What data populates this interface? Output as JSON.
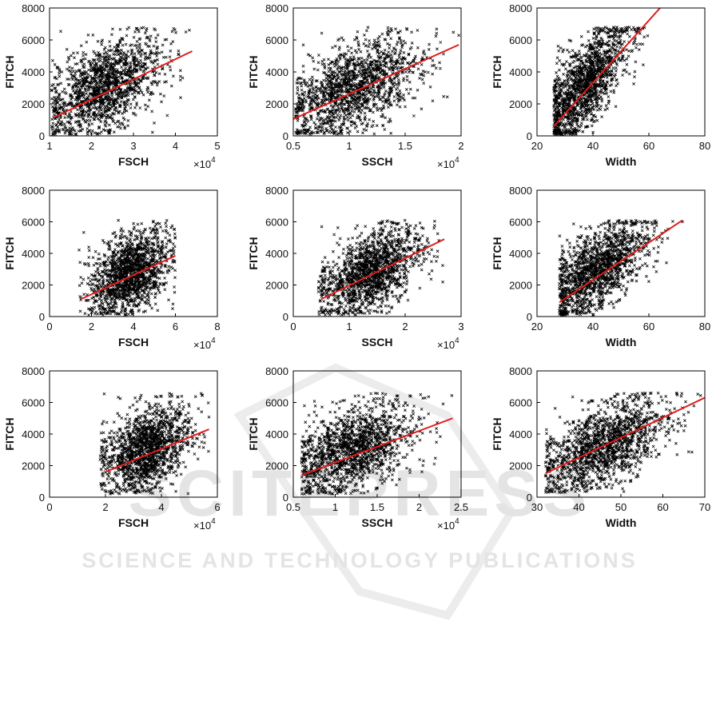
{
  "watermark": {
    "brand": "SCITEPRESS",
    "tagline": "SCIENCE AND TECHNOLOGY PUBLICATIONS"
  },
  "colors": {
    "points": "#000000",
    "fit_line": "#e11b1b",
    "axes": "#000000",
    "watermark": "#e4e4e4"
  },
  "chart_data": [
    {
      "type": "scatter",
      "title": "",
      "xlabel": "FSCH",
      "ylabel": "FITCH",
      "xlim": [
        1,
        5
      ],
      "ylim": [
        0,
        8000
      ],
      "xticks": [
        "1",
        "2",
        "3",
        "4",
        "5"
      ],
      "yticks": [
        "0",
        "2000",
        "4000",
        "6000",
        "8000"
      ],
      "x_multiplier": "×10^4",
      "point_cloud": {
        "center": [
          2.3,
          3000
        ],
        "x_range": [
          1.05,
          4.4
        ],
        "y_range": [
          100,
          6800
        ]
      },
      "fit_line": {
        "x": [
          1.1,
          4.4
        ],
        "y": [
          1150,
          5300
        ]
      }
    },
    {
      "type": "scatter",
      "title": "",
      "xlabel": "SSCH",
      "ylabel": "FITCH",
      "xlim": [
        0.5,
        2
      ],
      "ylim": [
        0,
        8000
      ],
      "xticks": [
        "0.5",
        "1",
        "1.5",
        "2"
      ],
      "yticks": [
        "0",
        "2000",
        "4000",
        "6000",
        "8000"
      ],
      "x_multiplier": "×10^4",
      "point_cloud": {
        "center": [
          1.05,
          3000
        ],
        "x_range": [
          0.52,
          1.98
        ],
        "y_range": [
          100,
          6800
        ]
      },
      "fit_line": {
        "x": [
          0.5,
          1.98
        ],
        "y": [
          1050,
          5700
        ]
      }
    },
    {
      "type": "scatter",
      "title": "",
      "xlabel": "Width",
      "ylabel": "FITCH",
      "xlim": [
        20,
        80
      ],
      "ylim": [
        0,
        8000
      ],
      "xticks": [
        "20",
        "40",
        "60",
        "80"
      ],
      "yticks": [
        "0",
        "2000",
        "4000",
        "6000",
        "8000"
      ],
      "x_multiplier": "",
      "point_cloud": {
        "center": [
          37,
          3200
        ],
        "x_range": [
          26,
          64
        ],
        "y_range": [
          100,
          6800
        ]
      },
      "fit_line": {
        "x": [
          26,
          64
        ],
        "y": [
          600,
          8000
        ]
      }
    },
    {
      "type": "scatter",
      "title": "",
      "xlabel": "FSCH",
      "ylabel": "FITCH",
      "xlim": [
        0,
        8
      ],
      "ylim": [
        0,
        8000
      ],
      "xticks": [
        "0",
        "2",
        "4",
        "6",
        "8"
      ],
      "yticks": [
        "0",
        "2000",
        "4000",
        "6000",
        "8000"
      ],
      "x_multiplier": "×10^4",
      "point_cloud": {
        "center": [
          3.8,
          2700
        ],
        "x_range": [
          1.4,
          6.0
        ],
        "y_range": [
          100,
          6100
        ]
      },
      "fit_line": {
        "x": [
          1.5,
          6.0
        ],
        "y": [
          1100,
          3850
        ]
      }
    },
    {
      "type": "scatter",
      "title": "",
      "xlabel": "SSCH",
      "ylabel": "FITCH",
      "xlim": [
        0,
        3
      ],
      "ylim": [
        0,
        8000
      ],
      "xticks": [
        "0",
        "1",
        "2",
        "3"
      ],
      "yticks": [
        "0",
        "2000",
        "4000",
        "6000",
        "8000"
      ],
      "x_multiplier": "×10^4",
      "point_cloud": {
        "center": [
          1.4,
          2800
        ],
        "x_range": [
          0.45,
          2.7
        ],
        "y_range": [
          100,
          6100
        ]
      },
      "fit_line": {
        "x": [
          0.5,
          2.7
        ],
        "y": [
          1100,
          4900
        ]
      }
    },
    {
      "type": "scatter",
      "title": "",
      "xlabel": "Width",
      "ylabel": "FITCH",
      "xlim": [
        20,
        80
      ],
      "ylim": [
        0,
        8000
      ],
      "xticks": [
        "20",
        "40",
        "60",
        "80"
      ],
      "yticks": [
        "0",
        "2000",
        "4000",
        "6000",
        "8000"
      ],
      "x_multiplier": "",
      "point_cloud": {
        "center": [
          42,
          3000
        ],
        "x_range": [
          28,
          72
        ],
        "y_range": [
          100,
          6100
        ]
      },
      "fit_line": {
        "x": [
          28,
          72
        ],
        "y": [
          900,
          6100
        ]
      }
    },
    {
      "type": "scatter",
      "title": "",
      "xlabel": "FSCH",
      "ylabel": "FITCH",
      "xlim": [
        0,
        6
      ],
      "ylim": [
        0,
        8000
      ],
      "xticks": [
        "0",
        "2",
        "4",
        "6"
      ],
      "yticks": [
        "0",
        "2000",
        "4000",
        "6000",
        "8000"
      ],
      "x_multiplier": "×10^4",
      "point_cloud": {
        "center": [
          3.5,
          3000
        ],
        "x_range": [
          1.8,
          5.7
        ],
        "y_range": [
          200,
          6600
        ]
      },
      "fit_line": {
        "x": [
          2.0,
          5.7
        ],
        "y": [
          1600,
          4300
        ]
      }
    },
    {
      "type": "scatter",
      "title": "",
      "xlabel": "SSCH",
      "ylabel": "FITCH",
      "xlim": [
        0.5,
        2.5
      ],
      "ylim": [
        0,
        8000
      ],
      "xticks": [
        "0.5",
        "1",
        "1.5",
        "2",
        "2.5"
      ],
      "yticks": [
        "0",
        "2000",
        "4000",
        "6000",
        "8000"
      ],
      "x_multiplier": "×10^4",
      "point_cloud": {
        "center": [
          1.2,
          3000
        ],
        "x_range": [
          0.6,
          2.4
        ],
        "y_range": [
          200,
          6600
        ]
      },
      "fit_line": {
        "x": [
          0.6,
          2.4
        ],
        "y": [
          1400,
          5000
        ]
      }
    },
    {
      "type": "scatter",
      "title": "",
      "xlabel": "Width",
      "ylabel": "FITCH",
      "xlim": [
        30,
        70
      ],
      "ylim": [
        0,
        8000
      ],
      "xticks": [
        "30",
        "40",
        "50",
        "60",
        "70"
      ],
      "yticks": [
        "0",
        "2000",
        "4000",
        "6000",
        "8000"
      ],
      "x_multiplier": "",
      "point_cloud": {
        "center": [
          46,
          3200
        ],
        "x_range": [
          32,
          69
        ],
        "y_range": [
          300,
          6600
        ]
      },
      "fit_line": {
        "x": [
          32,
          70
        ],
        "y": [
          1500,
          6300
        ]
      }
    }
  ]
}
